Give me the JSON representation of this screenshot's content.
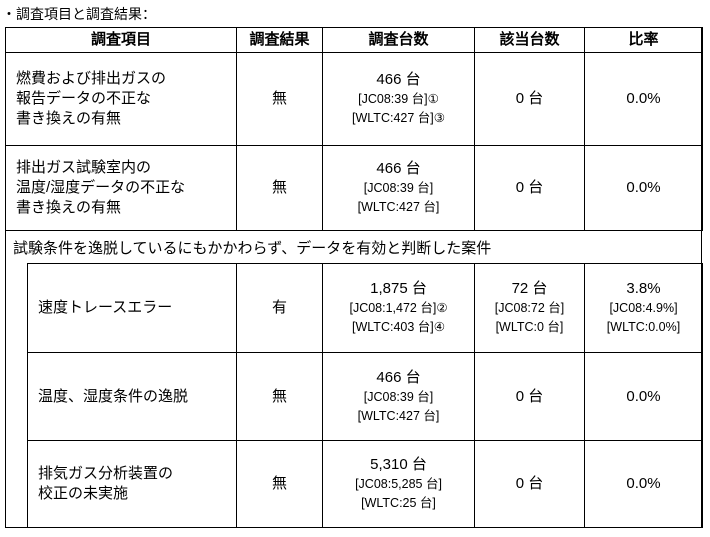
{
  "title": "・調査項目と調査結果：",
  "headers": [
    "調査項目",
    "調査結果",
    "調査台数",
    "該当台数",
    "比率"
  ],
  "rows": [
    {
      "item": [
        "燃費および排出ガスの",
        "報告データの不正な",
        "書き換えの有無"
      ],
      "result": "無",
      "count": "466 台",
      "count_sub": [
        "[JC08:39 台]①",
        "[WLTC:427 台]③"
      ],
      "hits": "0 台",
      "hits_sub": [],
      "ratio": "0.0%",
      "ratio_sub": []
    },
    {
      "item": [
        "排出ガス試験室内の",
        "温度/湿度データの不正な",
        "書き換えの有無"
      ],
      "result": "無",
      "count": "466 台",
      "count_sub": [
        "[JC08:39 台]",
        "[WLTC:427 台]"
      ],
      "hits": "0 台",
      "hits_sub": [],
      "ratio": "0.0%",
      "ratio_sub": []
    }
  ],
  "section": "試験条件を逸脱しているにもかかわらず、データを有効と判断した案件",
  "subrows": [
    {
      "item": [
        "速度トレースエラー"
      ],
      "result": "有",
      "count": "1,875 台",
      "count_sub": [
        "[JC08:1,472 台]②",
        "[WLTC:403 台]④"
      ],
      "hits": "72 台",
      "hits_sub": [
        "[JC08:72 台]",
        "[WLTC:0 台]"
      ],
      "ratio": "3.8%",
      "ratio_sub": [
        "[JC08:4.9%]",
        "[WLTC:0.0%]"
      ]
    },
    {
      "item": [
        "温度、湿度条件の逸脱"
      ],
      "result": "無",
      "count": "466 台",
      "count_sub": [
        "[JC08:39 台]",
        "[WLTC:427 台]"
      ],
      "hits": "0 台",
      "hits_sub": [],
      "ratio": "0.0%",
      "ratio_sub": []
    },
    {
      "item": [
        "排気ガス分析装置の",
        "校正の未実施"
      ],
      "result": "無",
      "count": "5,310 台",
      "count_sub": [
        "[JC08:5,285 台]",
        "[WLTC:25 台]"
      ],
      "hits": "0 台",
      "hits_sub": [],
      "ratio": "0.0%",
      "ratio_sub": []
    }
  ]
}
